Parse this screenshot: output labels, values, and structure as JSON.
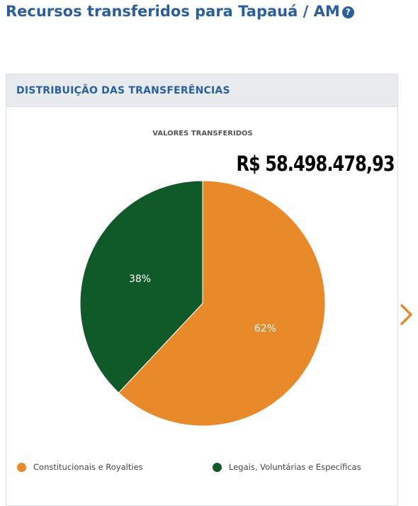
{
  "header": {
    "title": "Recursos transferidos para Tapauá / AM",
    "help_icon": "question-circle-icon"
  },
  "panel": {
    "title": "DISTRIBUIÇÃO DAS TRANSFERÊNCIAS",
    "total_value": "R$ 58.498.478,93",
    "next_icon": "chevron-right-icon"
  },
  "chart_data": {
    "type": "pie",
    "title": "VALORES TRANSFERIDOS",
    "categories": [
      "Constitucionais e Royalties",
      "Legais, Voluntárias e Específicas"
    ],
    "values": [
      62,
      38
    ],
    "labels": [
      "62%",
      "38%"
    ],
    "colors": [
      "#e88a2a",
      "#0f5a28"
    ],
    "legend_position": "bottom"
  }
}
